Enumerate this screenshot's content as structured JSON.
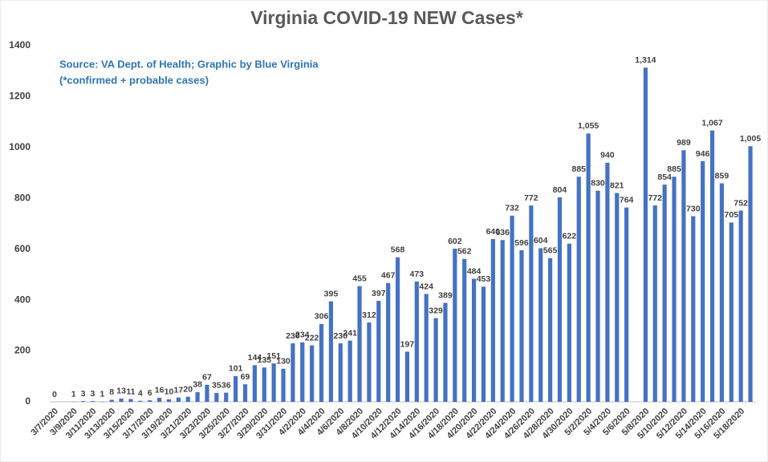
{
  "chart_data": {
    "type": "bar",
    "title": "Virginia COVID-19 NEW Cases*",
    "annotations": [
      "Source: VA Dept. of Health; Graphic by Blue Virginia",
      "(*confirmed + probable cases)"
    ],
    "categories": [
      "3/7/2020",
      null,
      "3/9/2020",
      null,
      "3/11/2020",
      null,
      "3/13/2020",
      null,
      "3/15/2020",
      null,
      "3/17/2020",
      null,
      "3/19/2020",
      null,
      "3/21/2020",
      null,
      "3/23/2020",
      null,
      "3/25/2020",
      null,
      "3/27/2020",
      null,
      "3/29/2020",
      null,
      "3/31/2020",
      null,
      "4/2/2020",
      null,
      "4/4/2020",
      null,
      "4/6/2020",
      null,
      "4/8/2020",
      null,
      "4/10/2020",
      null,
      "4/12/2020",
      null,
      "4/14/2020",
      null,
      "4/16/2020",
      null,
      "4/18/2020",
      null,
      "4/20/2020",
      null,
      "4/22/2020",
      null,
      "4/24/2020",
      null,
      "4/26/2020",
      null,
      "4/28/2020",
      null,
      "4/30/2020",
      null,
      "5/2/2020",
      null,
      "5/4/2020",
      null,
      "5/6/2020",
      null,
      "5/8/2020",
      null,
      "5/10/2020",
      null,
      "5/12/2020",
      null,
      "5/14/2020",
      null,
      "5/16/2020",
      null,
      "5/18/2020",
      null
    ],
    "values": [
      0,
      null,
      1,
      3,
      3,
      1,
      8,
      13,
      11,
      4,
      6,
      16,
      10,
      17,
      20,
      38,
      67,
      35,
      36,
      101,
      69,
      144,
      135,
      151,
      130,
      230,
      234,
      222,
      306,
      395,
      230,
      241,
      455,
      312,
      397,
      467,
      568,
      197,
      473,
      424,
      329,
      389,
      602,
      562,
      484,
      453,
      640,
      636,
      732,
      596,
      772,
      604,
      565,
      804,
      622,
      885,
      1055,
      830,
      940,
      821,
      764,
      null,
      1314,
      772,
      854,
      885,
      989,
      730,
      946,
      1067,
      859,
      705,
      752,
      1005
    ],
    "value_labels": [
      "0",
      null,
      "1",
      "3",
      "3",
      "1",
      "8",
      "13",
      "11",
      "4",
      "6",
      "16",
      "10",
      "17",
      "20",
      "38",
      "67",
      "35",
      "36",
      "101",
      "69",
      "144",
      "135",
      "151",
      "130",
      "230",
      "234",
      "222",
      "306",
      "395",
      "230",
      "241",
      "455",
      "312",
      "397",
      "467",
      "568",
      "197",
      "473",
      "424",
      "329",
      "389",
      "602",
      "562",
      "484",
      "453",
      "640",
      "636",
      "732",
      "596",
      "772",
      "604",
      "565",
      "804",
      "622",
      "885",
      "1,055",
      "830",
      "940",
      "821",
      "764",
      null,
      "1,314",
      "772",
      "854",
      "885",
      "989",
      "730",
      "946",
      "1,067",
      "859",
      "705",
      "752",
      "1,005"
    ],
    "color": "#4472c4",
    "ylim": [
      0,
      1400
    ],
    "yticks": [
      0,
      200,
      400,
      600,
      800,
      1000,
      1200,
      1400
    ],
    "grid": false
  }
}
